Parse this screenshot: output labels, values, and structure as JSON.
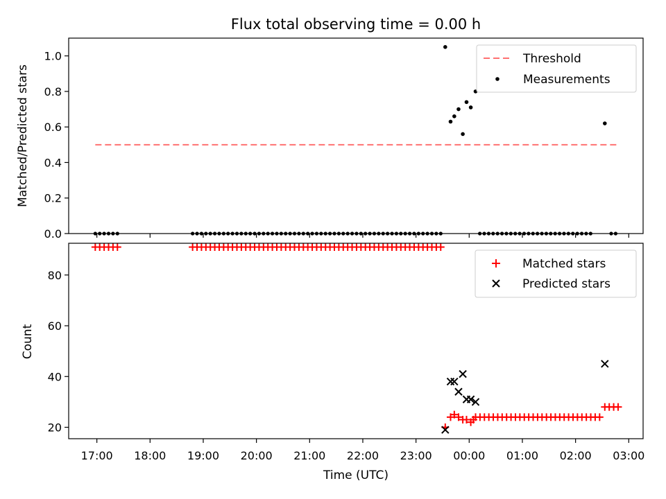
{
  "chart_data": [
    {
      "type": "scatter",
      "title": "Flux total observing time = 0.00 h",
      "xlabel": "",
      "ylabel": "Matched/Predicted stars",
      "xlim": [
        16.47,
        27.27
      ],
      "ylim": [
        0,
        1.1
      ],
      "yticks": [
        0.0,
        0.2,
        0.4,
        0.6,
        0.8,
        1.0
      ],
      "yticklabels": [
        "0.0",
        "0.2",
        "0.4",
        "0.6",
        "0.8",
        "1.0"
      ],
      "threshold": {
        "value": 0.5,
        "x_start": 16.97,
        "x_end": 26.82,
        "color": "#ff7070"
      },
      "legend": {
        "position": "top-right",
        "entries": [
          "Threshold",
          "Measurements"
        ]
      },
      "measurements": {
        "name": "Measurements",
        "color": "#000000",
        "zero_runs": [
          {
            "start": 16.97,
            "end": 17.4,
            "step": 0.0833
          },
          {
            "start": 18.8,
            "end": 23.5,
            "step": 0.0833
          },
          {
            "start": 24.2,
            "end": 26.33,
            "step": 0.0833
          },
          {
            "start": 26.67,
            "end": 26.83,
            "step": 0.0833
          }
        ],
        "points": [
          [
            23.55,
            1.05
          ],
          [
            23.65,
            0.63
          ],
          [
            23.72,
            0.66
          ],
          [
            23.8,
            0.7
          ],
          [
            23.88,
            0.56
          ],
          [
            23.95,
            0.74
          ],
          [
            24.03,
            0.71
          ],
          [
            24.12,
            0.8
          ],
          [
            26.55,
            0.62
          ]
        ]
      }
    },
    {
      "type": "scatter",
      "title": "",
      "xlabel": "Time (UTC)",
      "ylabel": "Count",
      "xlim": [
        16.47,
        27.27
      ],
      "ylim": [
        15.5,
        92.5
      ],
      "yticks": [
        20,
        40,
        60,
        80
      ],
      "yticklabels": [
        "20",
        "40",
        "60",
        "80"
      ],
      "xticks": [
        17,
        18,
        19,
        20,
        21,
        22,
        23,
        24,
        25,
        26,
        27
      ],
      "xticklabels": [
        "17:00",
        "18:00",
        "19:00",
        "20:00",
        "21:00",
        "22:00",
        "23:00",
        "00:00",
        "01:00",
        "02:00",
        "03:00"
      ],
      "legend": {
        "position": "top-right",
        "entries": [
          "Matched stars",
          "Predicted stars"
        ]
      },
      "matched": {
        "name": "Matched stars",
        "color": "#ff0000",
        "runs": [
          {
            "start": 16.97,
            "end": 17.4,
            "step": 0.0833,
            "value": 91
          },
          {
            "start": 18.8,
            "end": 23.5,
            "step": 0.0833,
            "value": 91
          },
          {
            "start": 24.12,
            "end": 26.5,
            "step": 0.0833,
            "value": 24
          },
          {
            "start": 26.55,
            "end": 26.8,
            "step": 0.0833,
            "value": 28
          }
        ],
        "points": [
          [
            23.55,
            20
          ],
          [
            23.65,
            24
          ],
          [
            23.72,
            25
          ],
          [
            23.8,
            24
          ],
          [
            23.88,
            23
          ],
          [
            23.95,
            23
          ],
          [
            24.03,
            22
          ],
          [
            24.08,
            23
          ]
        ]
      },
      "predicted": {
        "name": "Predicted stars",
        "color": "#000000",
        "points": [
          [
            23.55,
            19
          ],
          [
            23.65,
            38
          ],
          [
            23.72,
            38
          ],
          [
            23.8,
            34
          ],
          [
            23.88,
            41
          ],
          [
            23.95,
            31
          ],
          [
            24.03,
            31
          ],
          [
            24.12,
            30
          ],
          [
            26.55,
            45
          ]
        ]
      }
    }
  ]
}
